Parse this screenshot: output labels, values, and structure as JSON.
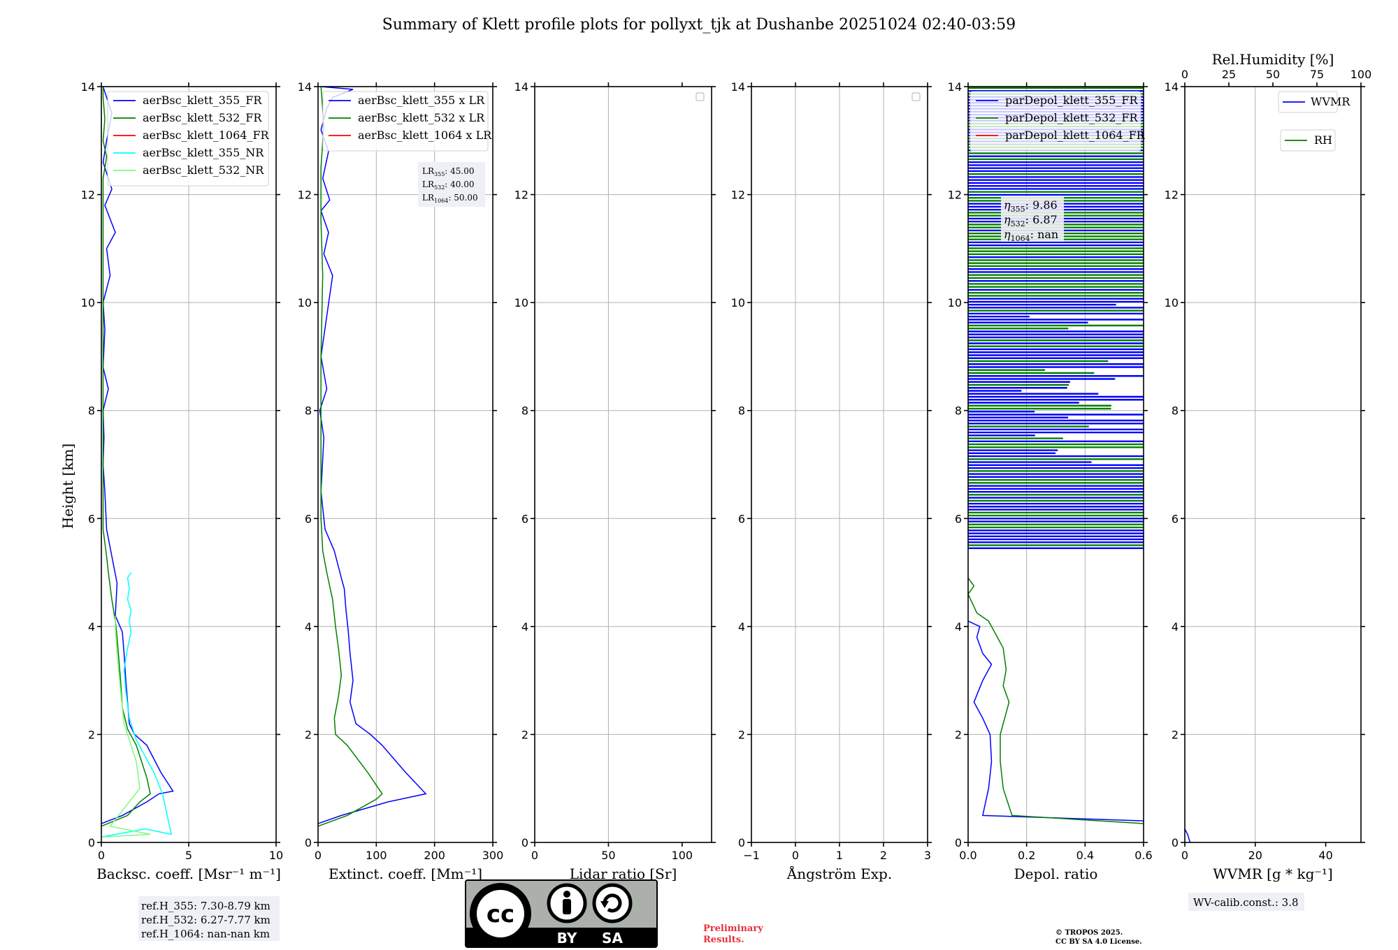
{
  "title": "Summary of Klett profile plots for pollyxt_tjk at Dushanbe 20251024 02:40-03:59",
  "colors": {
    "c355": "#0000ff",
    "c532": "#008000",
    "c1064": "#ff0000",
    "c355nr": "#00ffff",
    "c532nr": "#7cfc7c",
    "infobox": "#eef0f5"
  },
  "ylabel": "Height [km]",
  "ylim": [
    0,
    14
  ],
  "yticks": [
    "0",
    "2",
    "4",
    "6",
    "8",
    "10",
    "12",
    "14"
  ],
  "panels": {
    "bsc": {
      "xlabel": "Backsc. coeff. [Msr⁻¹ m⁻¹]",
      "xlim": [
        0,
        10
      ],
      "xticks": [
        "0",
        "5",
        "10"
      ],
      "legend": [
        "aerBsc_klett_355_FR",
        "aerBsc_klett_532_FR",
        "aerBsc_klett_1064_FR",
        "aerBsc_klett_355_NR",
        "aerBsc_klett_532_NR"
      ]
    },
    "ext": {
      "xlabel": "Extinct. coeff. [Mm⁻¹]",
      "xlim": [
        0,
        300
      ],
      "xticks": [
        "0",
        "100",
        "200",
        "300"
      ],
      "legend": [
        "aerBsc_klett_355 x LR",
        "aerBsc_klett_532 x LR",
        "aerBsc_klett_1064 x LR"
      ],
      "lr_lines": [
        {
          "sub": "355",
          "value": ": 45.00"
        },
        {
          "sub": "532",
          "value": ": 40.00"
        },
        {
          "sub": "1064",
          "value": ": 50.00"
        }
      ]
    },
    "lr": {
      "xlabel": "Lidar ratio [Sr]",
      "xlim": [
        0,
        120
      ],
      "xticks": [
        "0",
        "50",
        "100"
      ]
    },
    "ang": {
      "xlabel": "Ångström Exp.",
      "xlim": [
        -1,
        3
      ],
      "xticks": [
        "−1",
        "0",
        "1",
        "2",
        "3"
      ]
    },
    "dep": {
      "xlabel": "Depol. ratio",
      "xlim": [
        0,
        0.6
      ],
      "xticks": [
        "0.0",
        "0.2",
        "0.4",
        "0.6"
      ],
      "legend": [
        "parDepol_klett_355_FR",
        "parDepol_klett_532_FR",
        "parDepol_klett_1064_FR"
      ],
      "eta_lines": [
        {
          "sub": "355",
          "value": ": 9.86"
        },
        {
          "sub": "532",
          "value": ": 6.87"
        },
        {
          "sub": "1064",
          "value": ": nan"
        }
      ]
    },
    "wv": {
      "xlabel": "WVMR [g * kg⁻¹]",
      "xlim": [
        0,
        50
      ],
      "xticks": [
        "0",
        "20",
        "40"
      ],
      "top_label": "Rel.Humidity [%]",
      "top_xlim": [
        0,
        100
      ],
      "top_xticks": [
        "0",
        "25",
        "50",
        "75",
        "100"
      ],
      "legend_wvmr": "WVMR",
      "legend_rh": "RH"
    }
  },
  "ref_heights": [
    "ref.H_355: 7.30-8.79 km",
    "ref.H_532: 6.27-7.77 km",
    "ref.H_1064: nan-nan km"
  ],
  "wv_calib": "WV-calib.const.: 3.8",
  "logo": {
    "by": "BY",
    "sa": "SA"
  },
  "preliminary": [
    "Preliminary",
    "Results."
  ],
  "copyright": [
    "© TROPOS 2025.",
    "CC BY SA 4.0 License."
  ],
  "chart_data": {
    "type": "line",
    "title": "Summary of Klett profile plots for pollyxt_tjk at Dushanbe 20251024 02:40-03:59",
    "ylabel": "Height [km]",
    "ylim": [
      0,
      14
    ],
    "panels": [
      {
        "name": "Backscatter",
        "xlabel": "Backsc. coeff. [Msr⁻¹ m⁻¹]",
        "xlim": [
          0,
          10
        ],
        "series": [
          {
            "name": "aerBsc_klett_355_FR",
            "x": [
              0.0,
              1.2,
              2.6,
              3.3,
              4.1,
              3.4,
              2.6,
              1.9,
              1.6,
              1.5,
              1.4,
              1.3,
              1.2,
              0.8,
              0.9,
              0.6,
              0.3,
              0.2,
              0.1,
              0.15,
              0.1,
              0.4,
              0.1,
              0.2,
              0.1,
              0.5,
              0.3,
              0.8,
              0.2,
              0.6,
              0.1,
              0.3,
              0.6,
              0.2,
              0.1
            ],
            "y": [
              0.35,
              0.5,
              0.75,
              0.9,
              0.95,
              1.3,
              1.8,
              2.0,
              2.2,
              2.6,
              3.0,
              3.5,
              3.9,
              4.2,
              4.8,
              5.3,
              5.8,
              6.5,
              7.0,
              7.5,
              8.0,
              8.4,
              8.8,
              9.5,
              10.0,
              10.5,
              11.0,
              11.3,
              11.8,
              12.1,
              12.6,
              13.0,
              13.5,
              13.9,
              14.0
            ]
          },
          {
            "name": "aerBsc_klett_532_FR",
            "x": [
              0.0,
              1.5,
              2.2,
              2.8,
              2.6,
              2.0,
              1.5,
              1.2,
              1.1,
              1.0,
              0.9,
              0.8,
              0.6,
              0.4,
              0.3,
              0.1,
              0.1,
              0.1,
              0.1,
              0.1,
              0.1,
              0.1,
              0.1,
              0.1,
              0.1,
              0.1,
              0.1,
              0.1,
              0.1,
              0.3,
              0.1,
              0.2,
              0.1,
              0.1
            ],
            "y": [
              0.3,
              0.5,
              0.75,
              0.9,
              1.2,
              1.8,
              2.1,
              2.5,
              3.0,
              3.4,
              3.8,
              4.1,
              4.5,
              5.0,
              5.3,
              5.8,
              6.5,
              7.0,
              7.5,
              8.0,
              8.5,
              9.0,
              9.5,
              10.0,
              10.5,
              11.0,
              11.5,
              12.0,
              12.3,
              12.7,
              13.0,
              13.4,
              13.8,
              14.0
            ]
          },
          {
            "name": "aerBsc_klett_355_NR",
            "x": [
              0.0,
              2.5,
              4.0,
              3.5,
              3.0,
              2.0,
              1.6,
              1.4,
              1.3,
              1.5,
              1.7,
              1.6,
              1.7,
              1.5,
              1.6,
              1.5,
              1.7
            ],
            "y": [
              0.1,
              0.25,
              0.15,
              0.9,
              1.3,
              1.9,
              2.3,
              2.8,
              3.2,
              3.6,
              3.9,
              4.1,
              4.3,
              4.5,
              4.7,
              4.9,
              5.0
            ]
          },
          {
            "name": "aerBsc_klett_532_NR",
            "x": [
              0.0,
              2.8,
              0.5,
              2.2,
              2.0,
              1.3,
              1.1,
              0.9,
              0.8,
              0.8
            ],
            "y": [
              0.1,
              0.15,
              0.3,
              1.0,
              1.5,
              2.2,
              2.8,
              3.5,
              4.0,
              4.2
            ]
          }
        ]
      },
      {
        "name": "Extinction",
        "xlabel": "Extinct. coeff. [Mm⁻¹]",
        "xlim": [
          0,
          300
        ],
        "series": [
          {
            "name": "aerBsc_klett_355 x LR",
            "x": [
              0,
              40,
              120,
              185,
              150,
              110,
              90,
              65,
              55,
              60,
              55,
              52,
              50,
              48,
              45,
              40,
              28,
              12,
              5,
              10,
              3,
              15,
              5,
              25,
              10,
              18,
              5,
              20,
              8,
              18,
              5,
              15,
              25,
              60,
              5
            ],
            "y": [
              0.35,
              0.5,
              0.75,
              0.9,
              1.3,
              1.8,
              2.0,
              2.2,
              2.6,
              3.0,
              3.5,
              3.9,
              4.1,
              4.3,
              4.7,
              4.9,
              5.4,
              5.8,
              6.5,
              7.5,
              8.0,
              8.4,
              9.0,
              10.5,
              10.9,
              11.3,
              11.7,
              11.9,
              12.3,
              12.8,
              13.2,
              13.6,
              13.8,
              13.95,
              14.0
            ]
          },
          {
            "name": "aerBsc_klett_532 x LR",
            "x": [
              0,
              50,
              100,
              110,
              85,
              50,
              30,
              28,
              35,
              40,
              35,
              30,
              25,
              15,
              8,
              5,
              5,
              5,
              5,
              8,
              5,
              5,
              10,
              5
            ],
            "y": [
              0.3,
              0.5,
              0.8,
              0.9,
              1.3,
              1.8,
              2.0,
              2.3,
              2.7,
              3.1,
              3.6,
              4.0,
              4.5,
              5.0,
              5.4,
              6.0,
              7.0,
              8.0,
              9.0,
              10.5,
              11.5,
              12.5,
              13.3,
              14.0
            ]
          }
        ]
      },
      {
        "name": "Lidar ratio",
        "xlabel": "Lidar ratio [Sr]",
        "xlim": [
          0,
          120
        ],
        "series": []
      },
      {
        "name": "Angstrom",
        "xlabel": "Ångström Exp.",
        "xlim": [
          -1,
          3
        ],
        "series": []
      },
      {
        "name": "Depolarization",
        "xlabel": "Depol. ratio",
        "xlim": [
          0,
          0.6
        ],
        "series": [
          {
            "name": "parDepol_klett_355_FR",
            "x": [
              0.6,
              0.05,
              0.07,
              0.08,
              0.075,
              0.05,
              0.02,
              0.05,
              0.08,
              0.05,
              0.03,
              0.04,
              0.0
            ],
            "y": [
              0.4,
              0.5,
              1.0,
              1.5,
              2.0,
              2.3,
              2.6,
              3.0,
              3.3,
              3.5,
              3.8,
              4.0,
              4.1
            ]
          },
          {
            "name": "parDepol_klett_532_FR",
            "x": [
              0.6,
              0.15,
              0.12,
              0.11,
              0.11,
              0.12,
              0.14,
              0.12,
              0.13,
              0.12,
              0.09,
              0.07,
              0.03,
              0.0,
              0.02,
              0.0
            ],
            "y": [
              0.35,
              0.5,
              1.0,
              1.5,
              2.0,
              2.2,
              2.6,
              2.9,
              3.2,
              3.6,
              3.9,
              4.1,
              4.25,
              4.6,
              4.75,
              4.9
            ]
          }
        ]
      },
      {
        "name": "Water vapor",
        "xlabel": "WVMR [g * kg⁻¹]",
        "xlim": [
          0,
          50
        ],
        "series": [
          {
            "name": "WVMR",
            "x": [
              0.0,
              0.8,
              1.5
            ],
            "y": [
              0.25,
              0.15,
              0.0
            ]
          }
        ]
      }
    ],
    "ref_heights": [
      "ref.H_355: 7.30-8.79 km",
      "ref.H_532: 6.27-7.77 km",
      "ref.H_1064: nan-nan km"
    ],
    "grid": true
  }
}
